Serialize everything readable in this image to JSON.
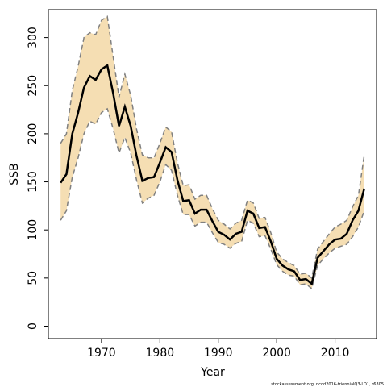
{
  "chart_data": {
    "type": "line",
    "xlabel": "Year",
    "ylabel": "SSB",
    "note": "stockassessment.org, ncod2016-triennialQ3-LO1, r6305",
    "x": [
      1963,
      1964,
      1965,
      1966,
      1967,
      1968,
      1969,
      1970,
      1971,
      1972,
      1973,
      1974,
      1975,
      1976,
      1977,
      1978,
      1979,
      1980,
      1981,
      1982,
      1983,
      1984,
      1985,
      1986,
      1987,
      1988,
      1989,
      1990,
      1991,
      1992,
      1993,
      1994,
      1995,
      1996,
      1997,
      1998,
      1999,
      2000,
      2001,
      2002,
      2003,
      2004,
      2005,
      2006,
      2007,
      2008,
      2009,
      2010,
      2011,
      2012,
      2013,
      2014,
      2015
    ],
    "band_color": "#f5deb3",
    "series": [
      {
        "color": "#000000",
        "style": "solid",
        "values": [
          149,
          158,
          200,
          222,
          248,
          260,
          256,
          267,
          271,
          242,
          208,
          228,
          208,
          177,
          151,
          154,
          155,
          170,
          186,
          181,
          152,
          130,
          131,
          117,
          121,
          121,
          109,
          98,
          95,
          90,
          96,
          98,
          120,
          117,
          102,
          103,
          88,
          70,
          63,
          59,
          57,
          48,
          49,
          44,
          71,
          78,
          85,
          90,
          91,
          96,
          110,
          120,
          143
        ]
      },
      {
        "color": "#808080",
        "style": "dashed",
        "values": [
          190,
          200,
          245,
          270,
          300,
          305,
          303,
          318,
          322,
          280,
          238,
          262,
          240,
          205,
          178,
          175,
          175,
          190,
          207,
          202,
          170,
          146,
          147,
          132,
          136,
          136,
          122,
          110,
          106,
          101,
          107,
          110,
          131,
          128,
          112,
          113,
          97,
          77,
          70,
          66,
          63,
          54,
          55,
          50,
          80,
          88,
          96,
          103,
          106,
          110,
          124,
          136,
          178
        ]
      },
      {
        "color": "#808080",
        "style": "dashed",
        "values": [
          110,
          120,
          155,
          175,
          200,
          213,
          210,
          222,
          226,
          205,
          180,
          196,
          180,
          152,
          128,
          133,
          136,
          150,
          168,
          162,
          136,
          116,
          116,
          104,
          108,
          108,
          97,
          87,
          85,
          81,
          86,
          88,
          110,
          107,
          93,
          94,
          80,
          64,
          57,
          53,
          52,
          43,
          44,
          39,
          63,
          70,
          76,
          81,
          83,
          85,
          93,
          103,
          120
        ]
      }
    ],
    "xlim": [
      1960.9,
      2017.1
    ],
    "ylim": [
      -13,
      329
    ],
    "xticks": [
      1970,
      1980,
      1990,
      2000,
      2010
    ],
    "yticks": [
      0,
      50,
      100,
      150,
      200,
      250,
      300
    ]
  }
}
